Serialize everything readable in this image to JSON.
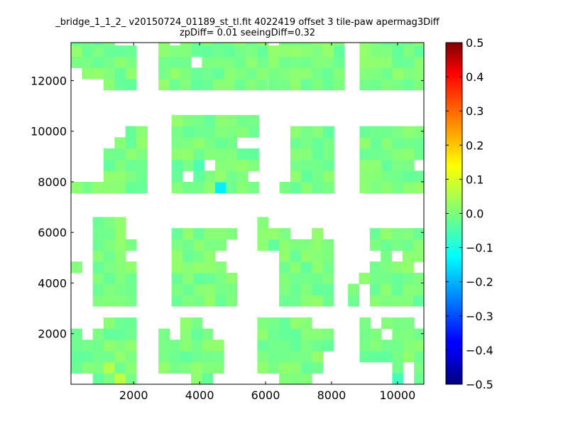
{
  "chart_data": {
    "type": "heatmap",
    "title": "_bridge_1_1_2_ v20150724_01189_st_tl.fit 4022419 offset 3 tile-paw apermag3Diff",
    "subtitle": "zpDiff= 0.01 seeingDiff=0.32",
    "xlabel": "",
    "ylabel": "",
    "xlim": [
      100,
      10800
    ],
    "ylim": [
      0,
      13500
    ],
    "xticks": [
      2000,
      4000,
      6000,
      8000,
      10000
    ],
    "yticks": [
      2000,
      4000,
      6000,
      8000,
      10000,
      12000
    ],
    "cell_size": [
      330,
      440
    ],
    "colormap": "jet",
    "colorbar": {
      "range": [
        -0.5,
        0.5
      ],
      "ticks": [
        "0.5",
        "0.4",
        "0.3",
        "0.2",
        "0.1",
        "0.0",
        "−0.1",
        "−0.2",
        "−0.3",
        "−0.4",
        "−0.5"
      ]
    },
    "grid": false,
    "regions": [
      {
        "name": "row1-col1",
        "x0": 100,
        "y0": 0,
        "rows": [
          "..XXXX",
          "XXXXXX",
          "XXXXXX",
          "XXXXXX",
          "X.XXXX",
          "...XXX",
          "......"
        ]
      },
      {
        "name": "row1-col2",
        "x0": 2750,
        "y0": 0,
        "rows": [
          "...XX.",
          "XXXXXX",
          "XXXXXX",
          "XXXXXX",
          "X.XXX.",
          "..XX..",
          "......"
        ]
      },
      {
        "name": "row1-col3",
        "x0": 5750,
        "y0": 0,
        "rows": [
          "..XXX..",
          "XXXXXX.",
          "XXXXXX.",
          "XXXXXXX",
          "XXXXXXX",
          "XXXXX..",
          "......."
        ]
      },
      {
        "name": "row1-col4",
        "x0": 8850,
        "y0": 0,
        "rows": [
          "...X.X",
          "...X.X",
          "XXXXXX",
          "XXXXXX",
          "XX.XXX",
          "X.XXX.",
          "......"
        ]
      },
      {
        "name": "row2-col1",
        "x0": 100,
        "y0": 3090,
        "rows": [
          "..XXXX",
          "..XXXX",
          "..XXXX",
          "X.XXXX",
          "..XXX.",
          "..XXXX",
          "..XXX.",
          "..XXX."
        ]
      },
      {
        "name": "row2-col2",
        "x0": 3150,
        "y0": 3090,
        "rows": [
          "XXXXXX",
          "XXXXXX",
          "XXXXXX",
          "XXXXX.",
          "XXXX..",
          "XXXXX.",
          "XXXXXX",
          "......"
        ]
      },
      {
        "name": "row2-col3",
        "x0": 5750,
        "y0": 3090,
        "rows": [
          "..XXXXX",
          "..XXXXX",
          "..XXXXX",
          "..XXXXX",
          "..XXXXX",
          "XXXXXXX",
          "XXX..X.",
          "X......"
        ]
      },
      {
        "name": "row2-col4",
        "x0": 8500,
        "y0": 3090,
        "rows": [
          "X.XXXXX",
          "X.XXXXX",
          ".XXXXXX",
          "..XXXX.",
          "...X.XX",
          "..XXXXX",
          "..XXXXX",
          "......."
        ]
      },
      {
        "name": "row3-col1",
        "x0": 100,
        "y0": 7560,
        "rows": [
          "XXXXXXX",
          "...XXXX",
          "...XXXX",
          "...XXXX",
          "....XXX",
          ".....XX",
          "......."
        ]
      },
      {
        "name": "row3-col2",
        "x0": 3150,
        "y0": 7560,
        "rows": [
          "XXXXXXXX",
          "X.XXXXX.",
          "XXX.XXXX",
          "XXXXXXXX",
          "XXXXXX..",
          "XXXXXXXX",
          "XXXXXXXX"
        ]
      },
      {
        "name": "row3-col3",
        "x0": 6090,
        "y0": 7560,
        "rows": [
          ".XXXXX.",
          "..XXXX.",
          "..XXXX.",
          "..XXXX.",
          "..XXXX.",
          "..XXXX.",
          "......."
        ]
      },
      {
        "name": "row3-col4",
        "x0": 8850,
        "y0": 7560,
        "rows": [
          "XXXXXX",
          "XXXXXX",
          "XXXXX.",
          "XXXXXX",
          "XXXXXX",
          "XXXXXX",
          "......"
        ]
      },
      {
        "name": "row4-col1",
        "x0": 100,
        "y0": 11630,
        "rows": [
          "...XXX",
          ".XXXXX",
          "XXXXXX",
          "XXXXXX",
          "XXXX..",
          "...XX."
        ]
      },
      {
        "name": "row4-col2",
        "x0": 2750,
        "y0": 11630,
        "rows": [
          "XXXXXXXXXX",
          "XXXXXXXXXX",
          "XXX.XXXXXX",
          "XXXXXXXXXX",
          "X.XXXXXXXX",
          ".XXXXXXX.."
        ]
      },
      {
        "name": "row4-col3",
        "x0": 5750,
        "y0": 11630,
        "rows": [
          ".XXXXXXX",
          "XXXXXXXX",
          "XXXXXXXX",
          "XXXXXXXX",
          "X.XXXXXX",
          ".XXXXXXX"
        ]
      },
      {
        "name": "row4-col4",
        "x0": 8850,
        "y0": 11630,
        "rows": [
          "XXXXXXX",
          "XXXXXXX",
          "XXXXXXX",
          "XXXXXXX",
          "XXXXXXX",
          "..XXXXX"
        ]
      }
    ],
    "outlier_cells": [
      {
        "x": 4615,
        "y": 7780,
        "value": -0.14
      },
      {
        "x": 575,
        "y": 12070,
        "value": -0.09
      },
      {
        "x": 10050,
        "y": 400,
        "value": -0.06
      },
      {
        "x": 3935,
        "y": 8790,
        "value": -0.05
      },
      {
        "x": 1200,
        "y": 450,
        "value": 0.05
      },
      {
        "x": 1600,
        "y": 350,
        "value": 0.06
      }
    ]
  }
}
